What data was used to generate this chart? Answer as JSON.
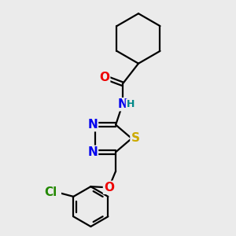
{
  "background_color": "#ebebeb",
  "atom_colors": {
    "C": "#000000",
    "N": "#0000ee",
    "O": "#ee0000",
    "S": "#ccaa00",
    "Cl": "#228800",
    "H": "#008888"
  },
  "bond_color": "#000000",
  "bond_width": 1.6,
  "font_size_atoms": 11,
  "font_size_H": 9
}
